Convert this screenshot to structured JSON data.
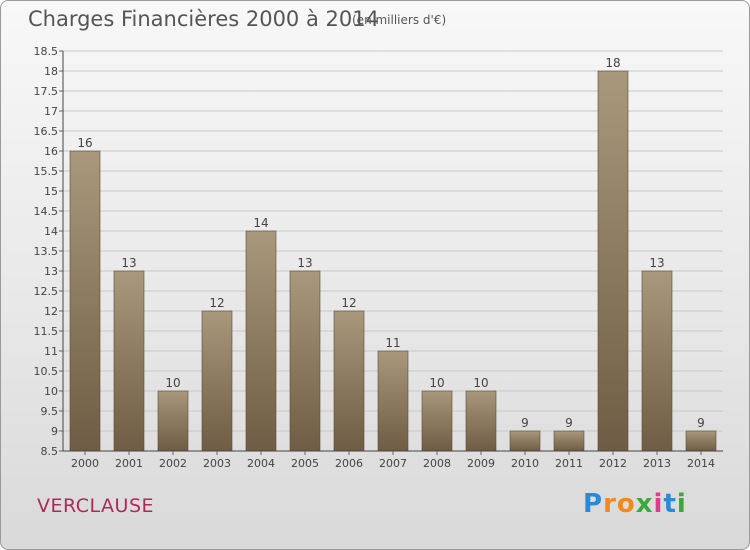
{
  "title": "Charges Financières 2000 à 2014",
  "subtitle": "(en milliers d'€)",
  "town": "VERCLAUSE",
  "brand": {
    "text": "Proxiti",
    "letters": [
      {
        "ch": "P",
        "color": "#2a8ad8"
      },
      {
        "ch": "r",
        "color": "#f08a1a"
      },
      {
        "ch": "o",
        "color": "#f08a1a"
      },
      {
        "ch": "x",
        "color": "#3aa83a"
      },
      {
        "ch": "i",
        "color": "#e03a8a"
      },
      {
        "ch": "t",
        "color": "#2a8ad8"
      },
      {
        "ch": "i",
        "color": "#3aa83a"
      }
    ]
  },
  "colors": {
    "bar_top": "#a8987c",
    "bar_bottom": "#6f5c44",
    "grid": "#c8c8c8",
    "axis_text": "#444444"
  },
  "chart_data": {
    "type": "bar",
    "categories": [
      "2000",
      "2001",
      "2002",
      "2003",
      "2004",
      "2005",
      "2006",
      "2007",
      "2008",
      "2009",
      "2010",
      "2011",
      "2012",
      "2013",
      "2014"
    ],
    "values": [
      16,
      13,
      10,
      12,
      14,
      13,
      12,
      11,
      10,
      10,
      9,
      9,
      18,
      13,
      9
    ],
    "value_labels": [
      "16",
      "13",
      "10",
      "12",
      "14",
      "13",
      "12",
      "11",
      "10",
      "10",
      "9",
      "9",
      "18",
      "13",
      "9"
    ],
    "ylim": [
      8.5,
      18.5
    ],
    "yticks": [
      8.5,
      9,
      9.5,
      10,
      10.5,
      11,
      11.5,
      12,
      12.5,
      13,
      13.5,
      14,
      14.5,
      15,
      15.5,
      16,
      16.5,
      17,
      17.5,
      18,
      18.5
    ],
    "ytick_labels": [
      "8.5",
      "9",
      "9.5",
      "10",
      "10.5",
      "11",
      "11.5",
      "12",
      "12.5",
      "13",
      "13.5",
      "14",
      "14.5",
      "15",
      "15.5",
      "16",
      "16.5",
      "17",
      "17.5",
      "18",
      "18.5"
    ],
    "grid": true,
    "xlabel": "",
    "ylabel": ""
  }
}
